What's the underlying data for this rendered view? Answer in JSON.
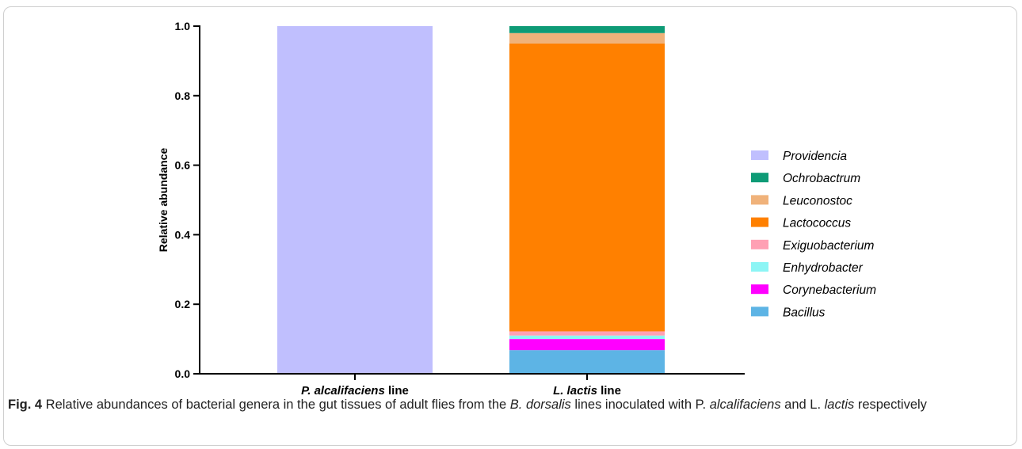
{
  "chart_data": {
    "type": "bar",
    "stacked": true,
    "categories": [
      {
        "italic": "P. alcalifaciens",
        "plain": " line"
      },
      {
        "italic": "L. lactis",
        "plain": " line"
      }
    ],
    "ylabel": "Relative abundance",
    "ylim": [
      0,
      1.0
    ],
    "yticks": [
      "0.0",
      "0.2",
      "0.4",
      "0.6",
      "0.8",
      "1.0"
    ],
    "ytick_values": [
      0,
      0.2,
      0.4,
      0.6,
      0.8,
      1.0
    ],
    "grid": false,
    "legend_position": "right",
    "series": [
      {
        "name": "Bacillus",
        "color": "#5db4e5",
        "values": [
          0,
          0.068
        ]
      },
      {
        "name": "Corynebacterium",
        "color": "#ff00ff",
        "values": [
          0,
          0.032
        ]
      },
      {
        "name": "Enhydrobacter",
        "color": "#8cf5f5",
        "values": [
          0,
          0.01
        ]
      },
      {
        "name": "Exiguobacterium",
        "color": "#ffa0b4",
        "values": [
          0,
          0.012
        ]
      },
      {
        "name": "Lactococcus",
        "color": "#ff8000",
        "values": [
          0,
          0.828
        ]
      },
      {
        "name": "Leuconostoc",
        "color": "#f0b27a",
        "values": [
          0,
          0.03
        ]
      },
      {
        "name": "Ochrobactrum",
        "color": "#0e9b76",
        "values": [
          0,
          0.02
        ]
      },
      {
        "name": "Providencia",
        "color": "#c0bffe",
        "values": [
          1.0,
          0
        ]
      }
    ],
    "legend_order": [
      "Providencia",
      "Ochrobactrum",
      "Leuconostoc",
      "Lactococcus",
      "Exiguobacterium",
      "Enhydrobacter",
      "Corynebacterium",
      "Bacillus"
    ]
  },
  "caption": {
    "label": "Fig. 4",
    "text1": " Relative abundances of bacterial genera in the gut tissues of adult flies from the ",
    "species1": "B. dorsalis",
    "text2": " lines inoculated with P. ",
    "species2": "alcalifaciens",
    "text3": " and L. ",
    "species3": "lactis",
    "text4": " respectively"
  }
}
